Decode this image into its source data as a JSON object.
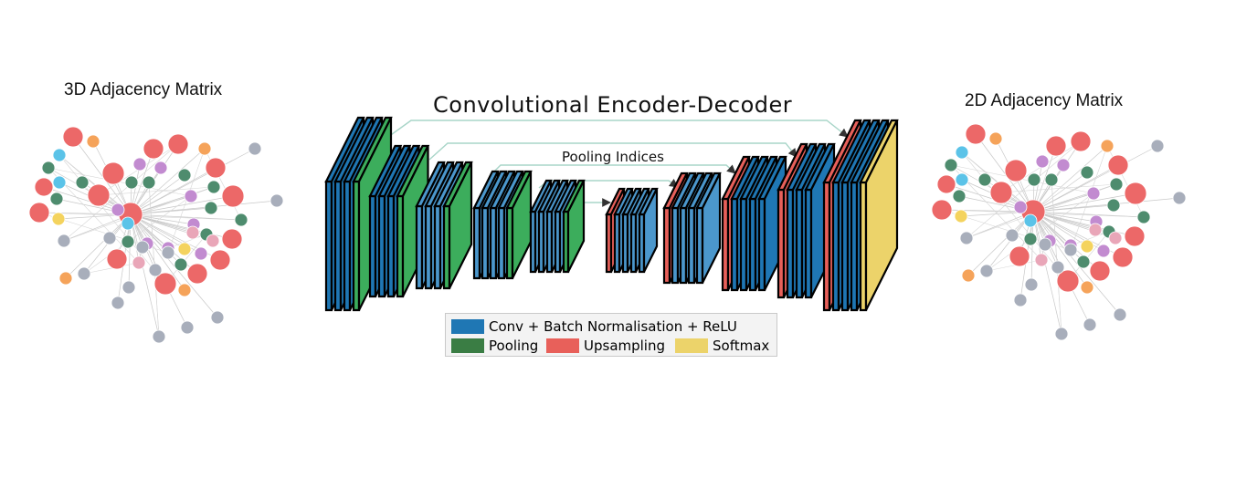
{
  "titles": {
    "left": "3D Adjacency Matrix",
    "main": "Convolutional Encoder-Decoder",
    "right": "2D Adjacency Matrix",
    "pooling_indices": "Pooling Indices"
  },
  "legend": {
    "items": [
      {
        "label": "Conv + Batch Normalisation + ReLU",
        "color": "#1f77b4"
      },
      {
        "label": "Pooling",
        "color": "#3a7d44"
      },
      {
        "label": "Upsampling",
        "color": "#e8605a"
      },
      {
        "label": "Softmax",
        "color": "#ecd36a"
      }
    ]
  },
  "colors": {
    "conv": "#1f77b4",
    "conv_light": "#4b97cc",
    "pool": "#3cad5c",
    "upsample": "#e8605a",
    "softmax": "#ecd36a",
    "arrow": "#a8d5c8",
    "node_red": "#ec6868",
    "node_grey": "#a8aebb",
    "node_green": "#4e8c6e",
    "node_purple": "#c28bd0",
    "node_blue": "#5bc3e8",
    "node_orange": "#f5a35a",
    "node_yellow": "#f4d35e",
    "node_pink": "#e9a6b8"
  }
}
